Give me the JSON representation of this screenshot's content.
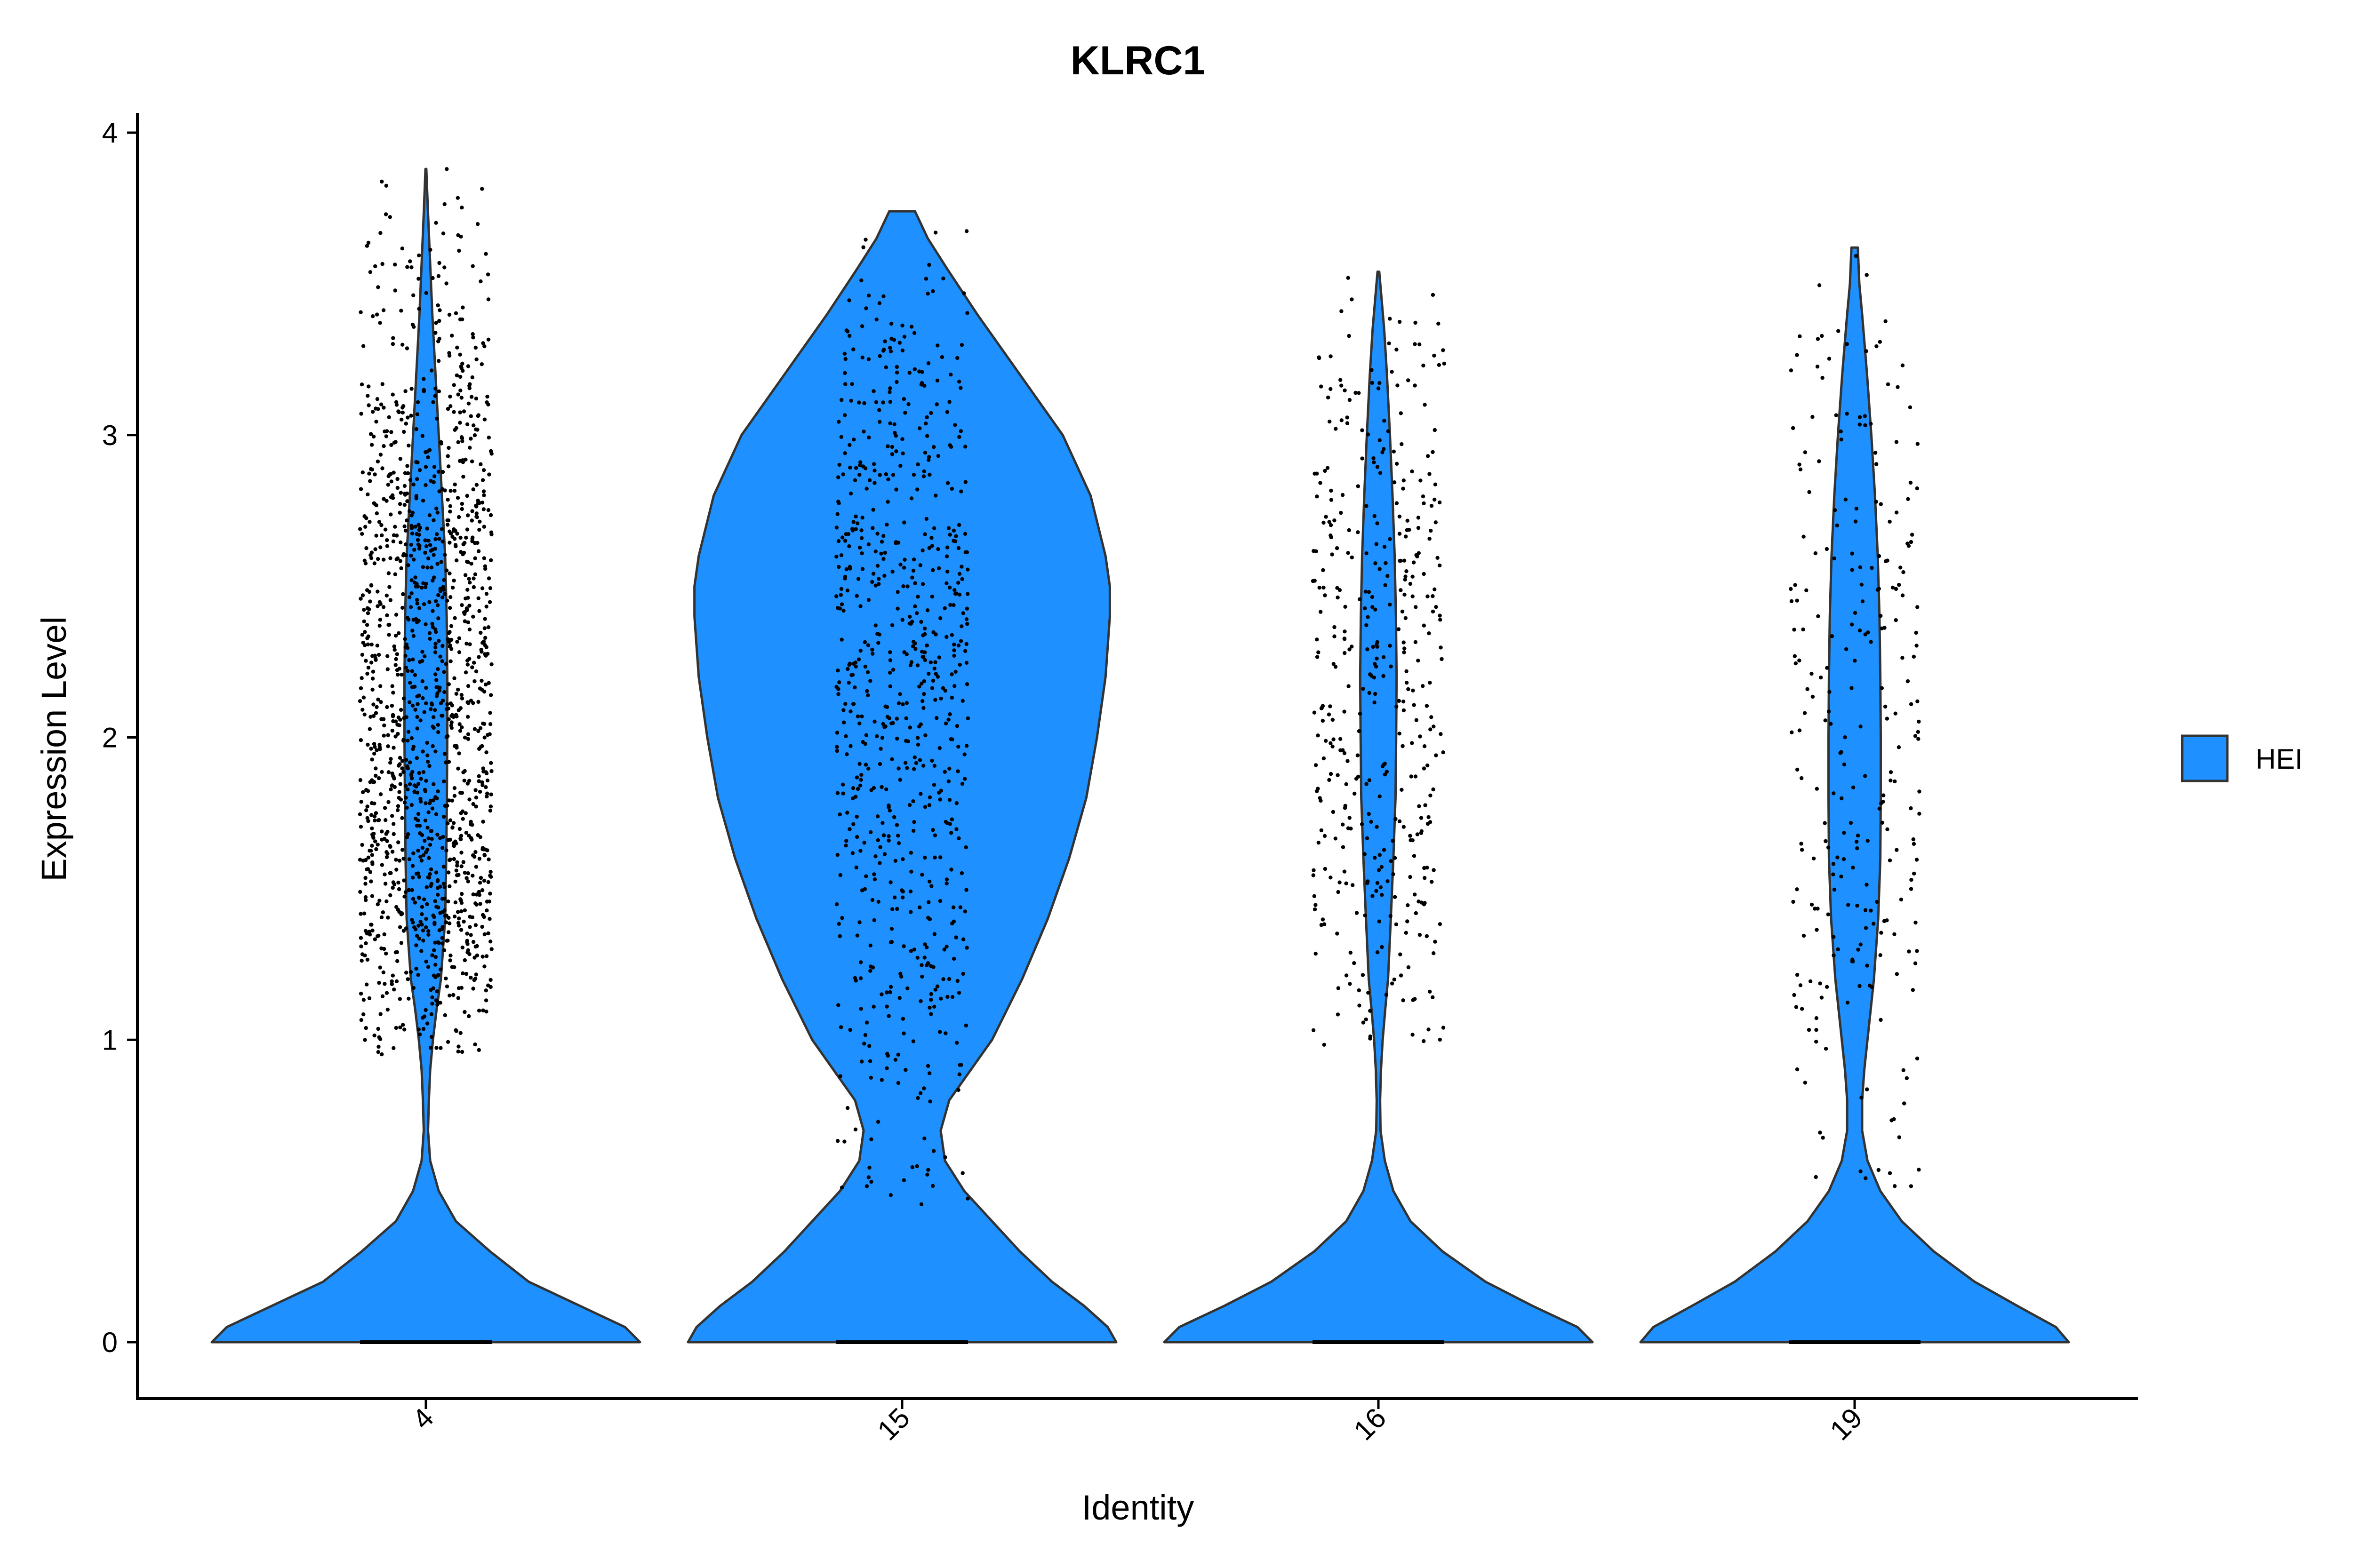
{
  "chart_data": {
    "type": "violin",
    "title": "KLRC1",
    "xlabel": "Identity",
    "ylabel": "Expression Level",
    "categories": [
      "4",
      "15",
      "16",
      "19"
    ],
    "ylim": [
      -0.2,
      4.07
    ],
    "yticks": [
      0,
      1,
      2,
      3,
      4
    ],
    "fill_color": "#1E90FF",
    "outline_color": "#333333",
    "point_color": "#000000",
    "legend": {
      "position": "right",
      "entries": [
        {
          "name": "HEI",
          "color": "#1E90FF"
        }
      ]
    },
    "grid": false,
    "series": [
      {
        "category": "4",
        "max": 3.88,
        "range_min": 0.95,
        "range_max": 3.88,
        "n_points": 1400,
        "density": [
          [
            0.0,
            1.0
          ],
          [
            0.05,
            0.93
          ],
          [
            0.12,
            0.72
          ],
          [
            0.2,
            0.48
          ],
          [
            0.3,
            0.3
          ],
          [
            0.4,
            0.14
          ],
          [
            0.5,
            0.06
          ],
          [
            0.6,
            0.02
          ],
          [
            0.7,
            0.01
          ],
          [
            0.8,
            0.014
          ],
          [
            0.9,
            0.02
          ],
          [
            1.0,
            0.033
          ],
          [
            1.1,
            0.05
          ],
          [
            1.2,
            0.07
          ],
          [
            1.4,
            0.09
          ],
          [
            1.6,
            0.095
          ],
          [
            1.8,
            0.098
          ],
          [
            2.0,
            0.1
          ],
          [
            2.2,
            0.1
          ],
          [
            2.4,
            0.097
          ],
          [
            2.6,
            0.09
          ],
          [
            2.8,
            0.075
          ],
          [
            3.0,
            0.06
          ],
          [
            3.2,
            0.045
          ],
          [
            3.4,
            0.03
          ],
          [
            3.6,
            0.018
          ],
          [
            3.75,
            0.009
          ],
          [
            3.88,
            0.002
          ]
        ]
      },
      {
        "category": "15",
        "max": 3.74,
        "range_min": 0.45,
        "range_max": 3.74,
        "n_points": 700,
        "density": [
          [
            0.0,
            1.0
          ],
          [
            0.05,
            0.96
          ],
          [
            0.12,
            0.85
          ],
          [
            0.2,
            0.7
          ],
          [
            0.3,
            0.55
          ],
          [
            0.4,
            0.42
          ],
          [
            0.5,
            0.29
          ],
          [
            0.6,
            0.2
          ],
          [
            0.7,
            0.18
          ],
          [
            0.8,
            0.22
          ],
          [
            0.9,
            0.32
          ],
          [
            1.0,
            0.42
          ],
          [
            1.2,
            0.56
          ],
          [
            1.4,
            0.68
          ],
          [
            1.6,
            0.78
          ],
          [
            1.8,
            0.86
          ],
          [
            2.0,
            0.91
          ],
          [
            2.2,
            0.95
          ],
          [
            2.4,
            0.97
          ],
          [
            2.5,
            0.97
          ],
          [
            2.6,
            0.95
          ],
          [
            2.8,
            0.88
          ],
          [
            3.0,
            0.75
          ],
          [
            3.2,
            0.55
          ],
          [
            3.4,
            0.35
          ],
          [
            3.55,
            0.21
          ],
          [
            3.65,
            0.12
          ],
          [
            3.74,
            0.06
          ]
        ]
      },
      {
        "category": "16",
        "max": 3.54,
        "range_min": 0.98,
        "range_max": 3.54,
        "n_points": 420,
        "density": [
          [
            0.0,
            1.0
          ],
          [
            0.05,
            0.93
          ],
          [
            0.12,
            0.72
          ],
          [
            0.2,
            0.5
          ],
          [
            0.3,
            0.3
          ],
          [
            0.4,
            0.15
          ],
          [
            0.5,
            0.07
          ],
          [
            0.6,
            0.03
          ],
          [
            0.7,
            0.01
          ],
          [
            0.8,
            0.008
          ],
          [
            0.9,
            0.012
          ],
          [
            1.0,
            0.02
          ],
          [
            1.1,
            0.032
          ],
          [
            1.2,
            0.045
          ],
          [
            1.4,
            0.058
          ],
          [
            1.6,
            0.07
          ],
          [
            1.8,
            0.08
          ],
          [
            2.0,
            0.083
          ],
          [
            2.2,
            0.085
          ],
          [
            2.4,
            0.082
          ],
          [
            2.6,
            0.076
          ],
          [
            2.8,
            0.066
          ],
          [
            3.0,
            0.054
          ],
          [
            3.2,
            0.04
          ],
          [
            3.35,
            0.027
          ],
          [
            3.45,
            0.015
          ],
          [
            3.54,
            0.004
          ]
        ]
      },
      {
        "category": "19",
        "max": 3.62,
        "range_min": 0.5,
        "range_max": 3.62,
        "n_points": 260,
        "density": [
          [
            0.0,
            1.0
          ],
          [
            0.05,
            0.94
          ],
          [
            0.12,
            0.76
          ],
          [
            0.2,
            0.56
          ],
          [
            0.3,
            0.37
          ],
          [
            0.4,
            0.22
          ],
          [
            0.5,
            0.12
          ],
          [
            0.6,
            0.06
          ],
          [
            0.7,
            0.035
          ],
          [
            0.8,
            0.035
          ],
          [
            0.9,
            0.045
          ],
          [
            1.0,
            0.06
          ],
          [
            1.1,
            0.075
          ],
          [
            1.2,
            0.09
          ],
          [
            1.4,
            0.11
          ],
          [
            1.6,
            0.12
          ],
          [
            1.8,
            0.122
          ],
          [
            2.0,
            0.122
          ],
          [
            2.2,
            0.12
          ],
          [
            2.4,
            0.116
          ],
          [
            2.6,
            0.108
          ],
          [
            2.8,
            0.095
          ],
          [
            3.0,
            0.078
          ],
          [
            3.2,
            0.058
          ],
          [
            3.4,
            0.035
          ],
          [
            3.5,
            0.022
          ],
          [
            3.62,
            0.015
          ]
        ]
      }
    ]
  }
}
